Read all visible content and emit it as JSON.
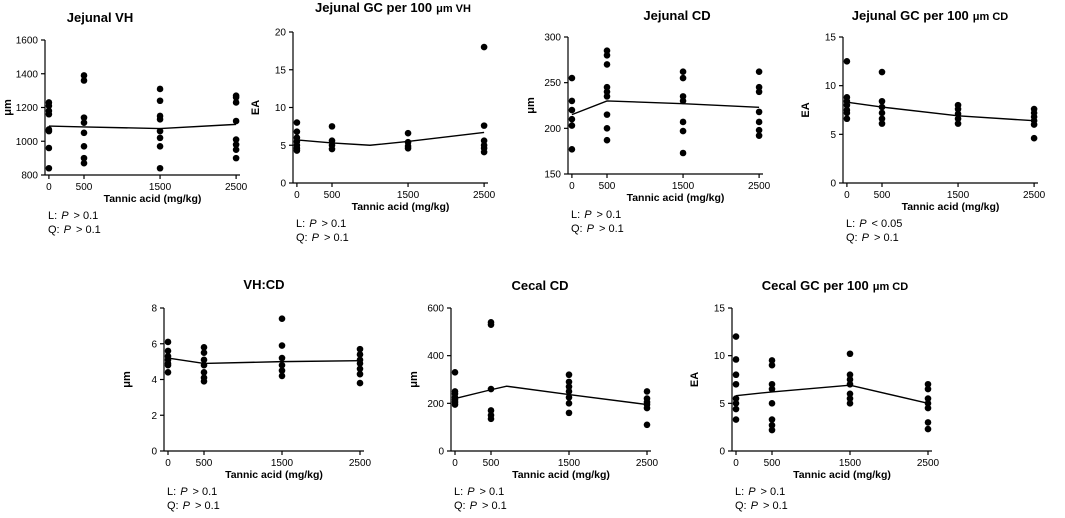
{
  "chart_data": [
    {
      "type": "scatter",
      "title": "Jejunal VH",
      "xlabel": "Tannic acid (mg/kg)",
      "ylabel": "μm",
      "categories": [
        "0",
        "500",
        "1500",
        "2500"
      ],
      "ylim": [
        800,
        1600
      ],
      "yticks": [
        "800",
        "1000",
        "1200",
        "1400",
        "1600"
      ],
      "points": [
        [
          0,
          1230
        ],
        [
          0,
          1210
        ],
        [
          0,
          1180
        ],
        [
          0,
          1160
        ],
        [
          0,
          1070
        ],
        [
          0,
          1060
        ],
        [
          0,
          960
        ],
        [
          0,
          840
        ],
        [
          500,
          1390
        ],
        [
          500,
          1360
        ],
        [
          500,
          1140
        ],
        [
          500,
          1110
        ],
        [
          500,
          1050
        ],
        [
          500,
          970
        ],
        [
          500,
          900
        ],
        [
          500,
          870
        ],
        [
          1500,
          1310
        ],
        [
          1500,
          1240
        ],
        [
          1500,
          1150
        ],
        [
          1500,
          1130
        ],
        [
          1500,
          1060
        ],
        [
          1500,
          1020
        ],
        [
          1500,
          970
        ],
        [
          1500,
          840
        ],
        [
          2500,
          1270
        ],
        [
          2500,
          1260
        ],
        [
          2500,
          1230
        ],
        [
          2500,
          1120
        ],
        [
          2500,
          1010
        ],
        [
          2500,
          980
        ],
        [
          2500,
          950
        ],
        [
          2500,
          900
        ]
      ],
      "mean_line": [
        [
          0,
          1090
        ],
        [
          500,
          1085
        ],
        [
          1500,
          1075
        ],
        [
          2500,
          1100
        ]
      ],
      "stats": {
        "L_label": "L:",
        "L_p": "P",
        "L_value": "> 0.1",
        "Q_label": "Q:",
        "Q_p": "P",
        "Q_value": "> 0.1"
      }
    },
    {
      "type": "scatter",
      "title": "Jejunal GC per 100",
      "title_suffix": "μm VH",
      "xlabel": "Tannic acid (mg/kg)",
      "ylabel": "EA",
      "categories": [
        "0",
        "500",
        "1500",
        "2500"
      ],
      "ylim": [
        0,
        20
      ],
      "yticks": [
        "0",
        "5",
        "10",
        "15",
        "20"
      ],
      "points": [
        [
          0,
          8
        ],
        [
          0,
          6.8
        ],
        [
          0,
          6
        ],
        [
          0,
          5.5
        ],
        [
          0,
          5
        ],
        [
          0,
          4.6
        ],
        [
          0,
          4.3
        ],
        [
          500,
          7.5
        ],
        [
          500,
          5.6
        ],
        [
          500,
          5
        ],
        [
          500,
          4.5
        ],
        [
          1500,
          6.6
        ],
        [
          1500,
          5.4
        ],
        [
          1500,
          4.9
        ],
        [
          1500,
          4.6
        ],
        [
          2500,
          18
        ],
        [
          2500,
          7.6
        ],
        [
          2500,
          5.6
        ],
        [
          2500,
          5
        ],
        [
          2500,
          4.6
        ],
        [
          2500,
          4.1
        ]
      ],
      "mean_line": [
        [
          0,
          5.7
        ],
        [
          500,
          5.3
        ],
        [
          1000,
          5.0
        ],
        [
          1500,
          5.5
        ],
        [
          2500,
          6.7
        ]
      ],
      "stats": {
        "L_label": "L:",
        "L_p": "P",
        "L_value": "> 0.1",
        "Q_label": "Q:",
        "Q_p": "P",
        "Q_value": "> 0.1"
      }
    },
    {
      "type": "scatter",
      "title": "Jejunal CD",
      "xlabel": "Tannic acid (mg/kg)",
      "ylabel": "μm",
      "categories": [
        "0",
        "500",
        "1500",
        "2500"
      ],
      "ylim": [
        150,
        300
      ],
      "yticks": [
        "150",
        "200",
        "250",
        "300"
      ],
      "points": [
        [
          0,
          255
        ],
        [
          0,
          230
        ],
        [
          0,
          220
        ],
        [
          0,
          210
        ],
        [
          0,
          203
        ],
        [
          0,
          177
        ],
        [
          500,
          285
        ],
        [
          500,
          280
        ],
        [
          500,
          270
        ],
        [
          500,
          245
        ],
        [
          500,
          240
        ],
        [
          500,
          235
        ],
        [
          500,
          215
        ],
        [
          500,
          200
        ],
        [
          500,
          187
        ],
        [
          1500,
          262
        ],
        [
          1500,
          255
        ],
        [
          1500,
          235
        ],
        [
          1500,
          230
        ],
        [
          1500,
          207
        ],
        [
          1500,
          197
        ],
        [
          1500,
          173
        ],
        [
          2500,
          262
        ],
        [
          2500,
          245
        ],
        [
          2500,
          240
        ],
        [
          2500,
          218
        ],
        [
          2500,
          207
        ],
        [
          2500,
          198
        ],
        [
          2500,
          192
        ]
      ],
      "mean_line": [
        [
          0,
          215
        ],
        [
          500,
          230
        ],
        [
          1500,
          227
        ],
        [
          2500,
          223
        ]
      ],
      "stats": {
        "L_label": "L:",
        "L_p": "P",
        "L_value": "> 0.1",
        "Q_label": "Q:",
        "Q_p": "P",
        "Q_value": "> 0.1"
      }
    },
    {
      "type": "scatter",
      "title": "Jejunal GC per 100",
      "title_suffix": "μm CD",
      "xlabel": "Tannic acid (mg/kg)",
      "ylabel": "EA",
      "categories": [
        "0",
        "500",
        "1500",
        "2500"
      ],
      "ylim": [
        0,
        15
      ],
      "yticks": [
        "0",
        "5",
        "10",
        "15"
      ],
      "points": [
        [
          0,
          12.5
        ],
        [
          0,
          8.8
        ],
        [
          0,
          8.4
        ],
        [
          0,
          8
        ],
        [
          0,
          7.5
        ],
        [
          0,
          7.2
        ],
        [
          0,
          6.6
        ],
        [
          500,
          11.4
        ],
        [
          500,
          8.4
        ],
        [
          500,
          7.8
        ],
        [
          500,
          7.2
        ],
        [
          500,
          6.6
        ],
        [
          500,
          6.1
        ],
        [
          1500,
          8
        ],
        [
          1500,
          7.6
        ],
        [
          1500,
          7.1
        ],
        [
          1500,
          6.6
        ],
        [
          1500,
          6.1
        ],
        [
          2500,
          7.6
        ],
        [
          2500,
          7.2
        ],
        [
          2500,
          6.8
        ],
        [
          2500,
          6.4
        ],
        [
          2500,
          6
        ],
        [
          2500,
          4.6
        ]
      ],
      "mean_line": [
        [
          0,
          8.3
        ],
        [
          500,
          7.8
        ],
        [
          1500,
          6.9
        ],
        [
          2500,
          6.4
        ]
      ],
      "stats": {
        "L_label": "L:",
        "L_p": "P",
        "L_value": "< 0.05",
        "Q_label": "Q:",
        "Q_p": "P",
        "Q_value": "> 0.1"
      }
    },
    {
      "type": "scatter",
      "title": "VH:CD",
      "xlabel": "Tannic acid (mg/kg)",
      "ylabel": "μm",
      "categories": [
        "0",
        "500",
        "1500",
        "2500"
      ],
      "ylim": [
        0,
        8
      ],
      "yticks": [
        "0",
        "2",
        "4",
        "6",
        "8"
      ],
      "points": [
        [
          0,
          6.1
        ],
        [
          0,
          5.6
        ],
        [
          0,
          5.3
        ],
        [
          0,
          5.1
        ],
        [
          0,
          4.9
        ],
        [
          0,
          4.8
        ],
        [
          0,
          4.4
        ],
        [
          500,
          5.8
        ],
        [
          500,
          5.5
        ],
        [
          500,
          5.1
        ],
        [
          500,
          4.8
        ],
        [
          500,
          4.4
        ],
        [
          500,
          4.1
        ],
        [
          500,
          3.9
        ],
        [
          1500,
          7.4
        ],
        [
          1500,
          5.9
        ],
        [
          1500,
          5.2
        ],
        [
          1500,
          4.8
        ],
        [
          1500,
          4.5
        ],
        [
          1500,
          4.2
        ],
        [
          2500,
          5.7
        ],
        [
          2500,
          5.4
        ],
        [
          2500,
          5.1
        ],
        [
          2500,
          4.9
        ],
        [
          2500,
          4.6
        ],
        [
          2500,
          4.3
        ],
        [
          2500,
          3.8
        ]
      ],
      "mean_line": [
        [
          0,
          5.2
        ],
        [
          500,
          4.9
        ],
        [
          1500,
          5.0
        ],
        [
          2500,
          5.05
        ]
      ],
      "stats": {
        "L_label": "L:",
        "L_p": "P",
        "L_value": "> 0.1",
        "Q_label": "Q:",
        "Q_p": "P",
        "Q_value": "> 0.1"
      }
    },
    {
      "type": "scatter",
      "title": "Cecal  CD",
      "xlabel": "Tannic acid (mg/kg)",
      "ylabel": "μm",
      "categories": [
        "0",
        "500",
        "1500",
        "2500"
      ],
      "ylim": [
        0,
        600
      ],
      "yticks": [
        "0",
        "200",
        "400",
        "600"
      ],
      "points": [
        [
          0,
          330
        ],
        [
          0,
          250
        ],
        [
          0,
          240
        ],
        [
          0,
          225
        ],
        [
          0,
          215
        ],
        [
          0,
          205
        ],
        [
          0,
          195
        ],
        [
          500,
          540
        ],
        [
          500,
          530
        ],
        [
          500,
          260
        ],
        [
          500,
          170
        ],
        [
          500,
          150
        ],
        [
          500,
          135
        ],
        [
          1500,
          320
        ],
        [
          1500,
          290
        ],
        [
          1500,
          270
        ],
        [
          1500,
          250
        ],
        [
          1500,
          225
        ],
        [
          1500,
          200
        ],
        [
          1500,
          160
        ],
        [
          2500,
          250
        ],
        [
          2500,
          220
        ],
        [
          2500,
          205
        ],
        [
          2500,
          195
        ],
        [
          2500,
          180
        ],
        [
          2500,
          110
        ]
      ],
      "mean_line": [
        [
          0,
          220
        ],
        [
          500,
          257
        ],
        [
          700,
          272
        ],
        [
          1500,
          237
        ],
        [
          2500,
          195
        ]
      ],
      "stats": {
        "L_label": "L:",
        "L_p": "P",
        "L_value": "> 0.1",
        "Q_label": "Q:",
        "Q_p": "P",
        "Q_value": "> 0.1"
      }
    },
    {
      "type": "scatter",
      "title": "Cecal GC per 100",
      "title_suffix": "μm CD",
      "xlabel": "Tannic acid (mg/kg)",
      "ylabel": "EA",
      "categories": [
        "0",
        "500",
        "1500",
        "2500"
      ],
      "ylim": [
        0,
        15
      ],
      "yticks": [
        "0",
        "5",
        "10",
        "15"
      ],
      "points": [
        [
          0,
          12
        ],
        [
          0,
          9.6
        ],
        [
          0,
          8
        ],
        [
          0,
          7
        ],
        [
          0,
          5.5
        ],
        [
          0,
          5
        ],
        [
          0,
          4.4
        ],
        [
          0,
          3.3
        ],
        [
          500,
          9.5
        ],
        [
          500,
          9
        ],
        [
          500,
          7
        ],
        [
          500,
          6.5
        ],
        [
          500,
          5
        ],
        [
          500,
          3.3
        ],
        [
          500,
          2.7
        ],
        [
          500,
          2.2
        ],
        [
          1500,
          10.2
        ],
        [
          1500,
          8
        ],
        [
          1500,
          7.5
        ],
        [
          1500,
          7
        ],
        [
          1500,
          6
        ],
        [
          1500,
          5.5
        ],
        [
          1500,
          5
        ],
        [
          2500,
          7
        ],
        [
          2500,
          6.5
        ],
        [
          2500,
          5.5
        ],
        [
          2500,
          5
        ],
        [
          2500,
          4.5
        ],
        [
          2500,
          3
        ],
        [
          2500,
          2.3
        ]
      ],
      "mean_line": [
        [
          0,
          5.8
        ],
        [
          500,
          6.2
        ],
        [
          1500,
          6.9
        ],
        [
          2500,
          5.0
        ]
      ],
      "stats": {
        "L_label": "L:",
        "L_p": "P",
        "L_value": "> 0.1",
        "Q_label": "Q:",
        "Q_p": "P",
        "Q_value": "> 0.1"
      }
    }
  ]
}
